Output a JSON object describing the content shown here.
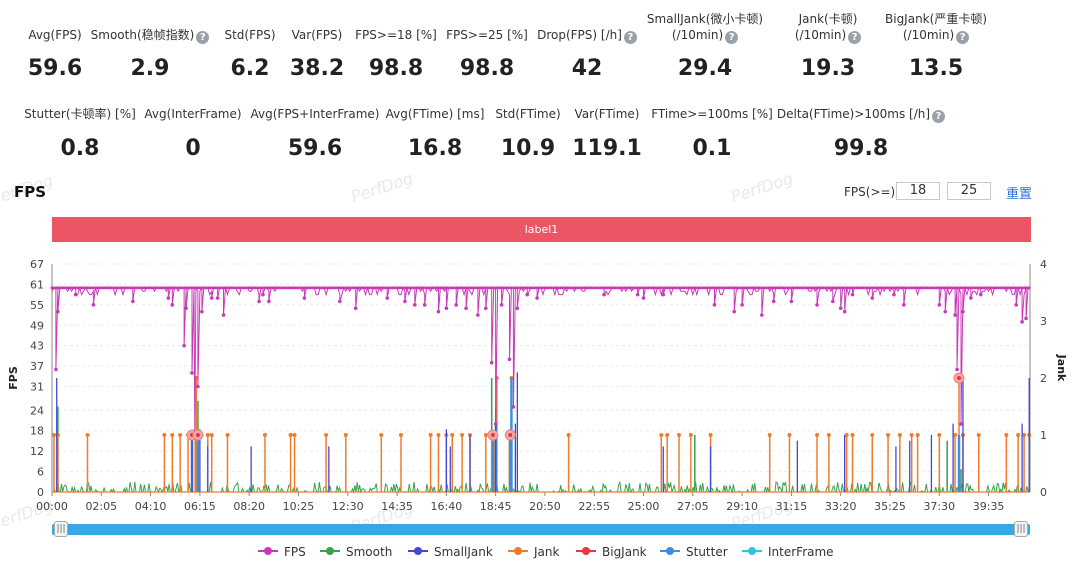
{
  "metrics_row1": [
    {
      "label": "Avg(FPS)",
      "label2": "",
      "value": "59.6",
      "help": false
    },
    {
      "label": "Smooth(稳帧指数)",
      "label2": "",
      "value": "2.9",
      "help": true
    },
    {
      "label": "Std(FPS)",
      "label2": "",
      "value": "6.2",
      "help": false
    },
    {
      "label": "Var(FPS)",
      "label2": "",
      "value": "38.2",
      "help": false
    },
    {
      "label": "FPS>=18 [%]",
      "label2": "",
      "value": "98.8",
      "help": false
    },
    {
      "label": "FPS>=25 [%]",
      "label2": "",
      "value": "98.8",
      "help": false
    },
    {
      "label": "Drop(FPS) [/h]",
      "label2": "",
      "value": "42",
      "help": true
    },
    {
      "label": "SmallJank(微小卡顿)",
      "label2": "(/10min)",
      "value": "29.4",
      "help": true
    },
    {
      "label": "Jank(卡顿)",
      "label2": "(/10min)",
      "value": "19.3",
      "help": true
    },
    {
      "label": "BigJank(严重卡顿)",
      "label2": "(/10min)",
      "value": "13.5",
      "help": true
    }
  ],
  "metrics_row2": [
    {
      "label": "Stutter(卡顿率) [%]",
      "value": "0.8",
      "help": false
    },
    {
      "label": "Avg(InterFrame)",
      "value": "0",
      "help": false
    },
    {
      "label": "Avg(FPS+InterFrame)",
      "value": "59.6",
      "help": false
    },
    {
      "label": "Avg(FTime) [ms]",
      "value": "16.8",
      "help": false
    },
    {
      "label": "Std(FTime)",
      "value": "10.9",
      "help": false
    },
    {
      "label": "Var(FTime)",
      "value": "119.1",
      "help": false
    },
    {
      "label": "FTime>=100ms [%]",
      "value": "0.1",
      "help": false
    },
    {
      "label": "Delta(FTime)>100ms [/h]",
      "value": "99.8",
      "help": true
    }
  ],
  "help_glyph": "?",
  "chart_title": "FPS",
  "threshold": {
    "label": "FPS(>=)",
    "value1": "18",
    "value2": "25",
    "reset_label": "重置"
  },
  "label_bar": "label1",
  "watermark": "PerfDog",
  "slider_grip": "|||",
  "chart_data": {
    "type": "line",
    "x_ticks": [
      "00:00",
      "02:05",
      "04:10",
      "06:15",
      "08:20",
      "10:25",
      "12:30",
      "14:35",
      "16:40",
      "18:45",
      "20:50",
      "22:55",
      "25:00",
      "27:05",
      "29:10",
      "31:15",
      "33:20",
      "35:25",
      "37:30",
      "39:35"
    ],
    "xlim_seconds": [
      0,
      2480
    ],
    "y_left": {
      "label": "FPS",
      "ticks": [
        0,
        6,
        12,
        18,
        24,
        31,
        37,
        43,
        49,
        55,
        61,
        67
      ],
      "lim": [
        0,
        67
      ]
    },
    "y_right": {
      "label": "Jank",
      "ticks": [
        0,
        1,
        2,
        3,
        4
      ],
      "lim": [
        0,
        4
      ]
    },
    "series": [
      {
        "name": "FPS",
        "color": "#c93ab8",
        "baseline": 60,
        "dips": [
          [
            10,
            36
          ],
          [
            15,
            53
          ],
          [
            60,
            58
          ],
          [
            105,
            55
          ],
          [
            205,
            56
          ],
          [
            295,
            57
          ],
          [
            305,
            55
          ],
          [
            335,
            43
          ],
          [
            340,
            54
          ],
          [
            355,
            35
          ],
          [
            362,
            17
          ],
          [
            370,
            31
          ],
          [
            380,
            53
          ],
          [
            405,
            57
          ],
          [
            420,
            57
          ],
          [
            435,
            52
          ],
          [
            525,
            56
          ],
          [
            535,
            58
          ],
          [
            550,
            56
          ],
          [
            640,
            57
          ],
          [
            730,
            56
          ],
          [
            770,
            54
          ],
          [
            850,
            57
          ],
          [
            895,
            56
          ],
          [
            920,
            55
          ],
          [
            945,
            55
          ],
          [
            980,
            53
          ],
          [
            1000,
            54
          ],
          [
            1025,
            55
          ],
          [
            1050,
            54
          ],
          [
            1080,
            52
          ],
          [
            1100,
            54
          ],
          [
            1115,
            38
          ],
          [
            1125,
            20
          ],
          [
            1140,
            55
          ],
          [
            1160,
            39
          ],
          [
            1170,
            25
          ],
          [
            1180,
            54
          ],
          [
            1205,
            58
          ],
          [
            1230,
            57
          ],
          [
            1400,
            58
          ],
          [
            1485,
            58
          ],
          [
            1500,
            57
          ],
          [
            1550,
            58
          ],
          [
            1680,
            55
          ],
          [
            1730,
            53
          ],
          [
            1750,
            55
          ],
          [
            1800,
            52
          ],
          [
            1830,
            56
          ],
          [
            1875,
            56
          ],
          [
            1940,
            55
          ],
          [
            1980,
            56
          ],
          [
            2000,
            54
          ],
          [
            2010,
            53
          ],
          [
            2030,
            58
          ],
          [
            2080,
            57
          ],
          [
            2135,
            58
          ],
          [
            2160,
            55
          ],
          [
            2250,
            55
          ],
          [
            2265,
            53
          ],
          [
            2290,
            52
          ],
          [
            2295,
            36
          ],
          [
            2305,
            20
          ],
          [
            2310,
            53
          ],
          [
            2330,
            57
          ],
          [
            2355,
            58
          ],
          [
            2445,
            55
          ],
          [
            2460,
            50
          ],
          [
            2470,
            51
          ]
        ]
      },
      {
        "name": "Smooth",
        "color": "#37a24b",
        "spikes": [
          [
            15,
            1.5
          ],
          [
            370,
            1.6
          ],
          [
            1115,
            2.0
          ],
          [
            1160,
            1.1
          ],
          [
            1630,
            1.0
          ],
          [
            2270,
            0.9
          ],
          [
            2305,
            0.4
          ]
        ]
      },
      {
        "name": "SmallJank",
        "color": "#3f49d6",
        "spikes": [
          [
            12,
            2.0
          ],
          [
            355,
            1.0
          ],
          [
            375,
            1.1
          ],
          [
            395,
            0.8
          ],
          [
            505,
            0.8
          ],
          [
            702,
            0.8
          ],
          [
            1000,
            1.1
          ],
          [
            1010,
            0.8
          ],
          [
            1060,
            1.0
          ],
          [
            1125,
            1.5
          ],
          [
            1175,
            1.2
          ],
          [
            1180,
            2.1
          ],
          [
            1550,
            0.8
          ],
          [
            1670,
            0.8
          ],
          [
            1890,
            0.9
          ],
          [
            2010,
            1.0
          ],
          [
            2140,
            0.8
          ],
          [
            2175,
            0.9
          ],
          [
            2230,
            1.0
          ],
          [
            2285,
            1.2
          ],
          [
            2310,
            2.0
          ],
          [
            2460,
            1.2
          ],
          [
            2478,
            2.0
          ]
        ]
      },
      {
        "name": "Jank",
        "color": "#f07c2b",
        "spikes": [
          [
            5,
            1
          ],
          [
            15,
            1
          ],
          [
            90,
            1
          ],
          [
            285,
            1
          ],
          [
            305,
            1
          ],
          [
            325,
            1
          ],
          [
            345,
            1
          ],
          [
            363,
            1
          ],
          [
            366,
            2
          ],
          [
            395,
            1
          ],
          [
            405,
            1
          ],
          [
            445,
            1
          ],
          [
            540,
            1
          ],
          [
            605,
            1
          ],
          [
            615,
            1
          ],
          [
            695,
            1
          ],
          [
            745,
            1
          ],
          [
            835,
            1
          ],
          [
            885,
            1
          ],
          [
            960,
            1
          ],
          [
            980,
            1
          ],
          [
            1000,
            1
          ],
          [
            1015,
            1
          ],
          [
            1040,
            1
          ],
          [
            1060,
            1
          ],
          [
            1100,
            1
          ],
          [
            1115,
            1
          ],
          [
            1122,
            1
          ],
          [
            1128,
            2
          ],
          [
            1160,
            1
          ],
          [
            1165,
            2
          ],
          [
            1310,
            1
          ],
          [
            1545,
            1
          ],
          [
            1560,
            1
          ],
          [
            1590,
            1
          ],
          [
            1620,
            1
          ],
          [
            1670,
            1
          ],
          [
            1820,
            1
          ],
          [
            1870,
            1
          ],
          [
            1940,
            1
          ],
          [
            1970,
            1
          ],
          [
            2015,
            1
          ],
          [
            2030,
            1
          ],
          [
            2080,
            1
          ],
          [
            2120,
            1
          ],
          [
            2150,
            1
          ],
          [
            2180,
            1
          ],
          [
            2195,
            1
          ],
          [
            2250,
            1
          ],
          [
            2290,
            1
          ],
          [
            2300,
            2
          ],
          [
            2310,
            1
          ],
          [
            2350,
            1
          ],
          [
            2420,
            1
          ],
          [
            2450,
            1
          ],
          [
            2465,
            1
          ],
          [
            2478,
            1
          ]
        ]
      },
      {
        "name": "BigJank",
        "color": "#e53a3a",
        "points": [
          [
            355,
            1
          ],
          [
            370,
            1
          ],
          [
            1118,
            1
          ],
          [
            1162,
            1
          ],
          [
            2300,
            2
          ]
        ]
      },
      {
        "name": "Stutter",
        "color": "#3e8fe0",
        "spikes": [
          [
            355,
            1.0
          ],
          [
            370,
            1.1
          ],
          [
            1118,
            0.9
          ],
          [
            1126,
            1.2
          ],
          [
            1162,
            1.0
          ],
          [
            1165,
            2.0
          ],
          [
            2300,
            1.0
          ]
        ]
      },
      {
        "name": "InterFrame",
        "color": "#2bc7d9",
        "spikes": []
      }
    ]
  }
}
